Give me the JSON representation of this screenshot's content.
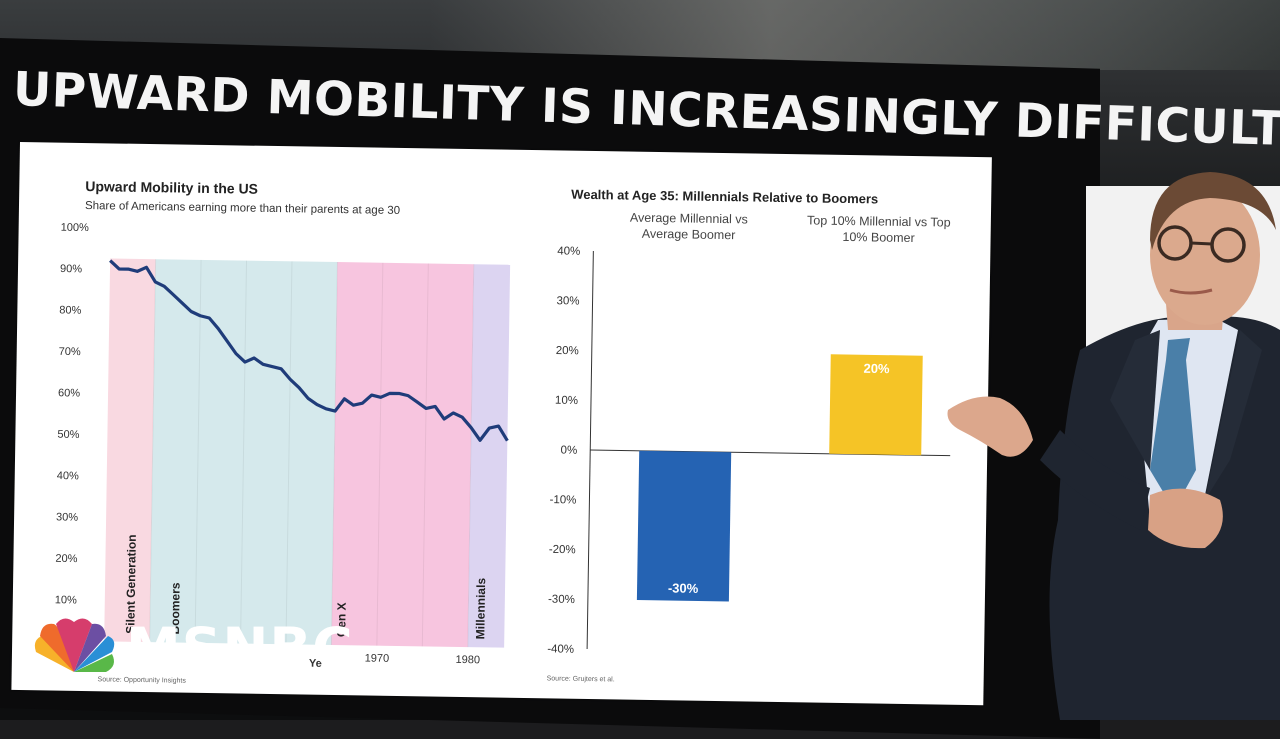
{
  "headline": "UPWARD MOBILITY IS INCREASINGLY DIFFICULT",
  "network": "MSNBC",
  "colors": {
    "line": "#1f3c7a",
    "negative_bar": "#2563b3",
    "positive_bar": "#f5c426"
  },
  "left_chart": {
    "title": "Upward Mobility in the US",
    "subtitle": "Share of Americans earning more than their parents at age 30",
    "source": "Source: Opportunity Insights",
    "x_tick_labels": [
      "1970",
      "1980"
    ],
    "x_label_partial": "Ye",
    "y_tick_labels": [
      "100%",
      "90%",
      "80%",
      "70%",
      "60%",
      "50%",
      "40%",
      "30%",
      "20%",
      "10%"
    ],
    "eras": [
      {
        "name": "Silent Generation",
        "color": "#f9d9e1"
      },
      {
        "name": "Boomers",
        "color": "#d5e9ec"
      },
      {
        "name": "Gen X",
        "color": "#f7c5df"
      },
      {
        "name": "Millennials",
        "color": "#dcd4f1"
      }
    ]
  },
  "chart_data": [
    {
      "type": "line",
      "title": "Upward Mobility in the US",
      "subtitle": "Share of Americans earning more than their parents at age 30",
      "ylim": [
        0,
        100
      ],
      "xlim": [
        1940,
        1984
      ],
      "series": [
        {
          "x": [
            1940,
            1941,
            1942,
            1943,
            1944,
            1945,
            1946,
            1947,
            1948,
            1949,
            1950,
            1951,
            1952,
            1953,
            1954,
            1955,
            1956,
            1957,
            1958,
            1959,
            1960,
            1961,
            1962,
            1963,
            1964,
            1965,
            1966,
            1967,
            1968,
            1969,
            1970,
            1971,
            1972,
            1973,
            1974,
            1975,
            1976,
            1977,
            1978,
            1979,
            1980,
            1981,
            1982,
            1983,
            1984
          ],
          "values": [
            92,
            90,
            90,
            89.5,
            90.5,
            87,
            86,
            84,
            82,
            80,
            79,
            78.5,
            76,
            73,
            70,
            68,
            69,
            67.5,
            67,
            66.5,
            64,
            62,
            59.5,
            58,
            57,
            56.5,
            59.5,
            58,
            58.5,
            60.5,
            60,
            61,
            61,
            60.5,
            59,
            57.5,
            58,
            55,
            56.5,
            55.5,
            53,
            50,
            53,
            53.5,
            50
          ]
        }
      ]
    },
    {
      "type": "bar",
      "title": "Wealth at Age 35: Millennials Relative to Boomers",
      "categories": [
        "Average Millennial vs Average Boomer",
        "Top 10% Millennial vs Top 10% Boomer"
      ],
      "values": [
        -30,
        20
      ],
      "data_labels": [
        "-30%",
        "20%"
      ],
      "y_tick_labels": [
        "40%",
        "30%",
        "20%",
        "10%",
        "0%",
        "-10%",
        "-20%",
        "-30%",
        "-40%"
      ],
      "ylim": [
        -40,
        40
      ],
      "source": "Source: Grujters et al."
    }
  ]
}
